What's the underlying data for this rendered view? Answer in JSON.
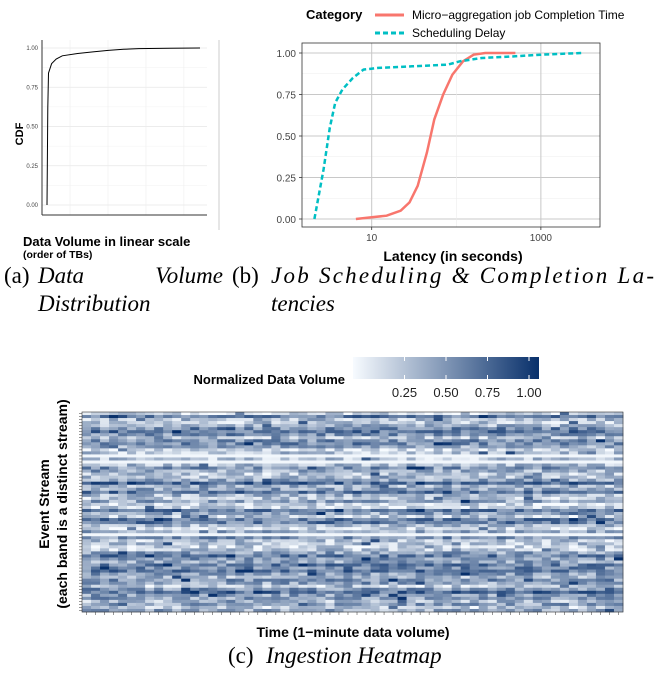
{
  "chart_data": [
    {
      "type": "line",
      "panel": "a",
      "ylabel": "CDF",
      "xlabel_line1": "Data Volume in linear scale",
      "xlabel_line2": "(order of TBs)",
      "yticks": [
        "0.00",
        "0.25",
        "0.50",
        "0.75",
        "1.00"
      ],
      "ylim": [
        0,
        1
      ],
      "grid": true,
      "series": [
        {
          "points": [
            [
              0,
              0
            ],
            [
              0.005,
              0.62
            ],
            [
              0.01,
              0.84
            ],
            [
              0.03,
              0.9
            ],
            [
              0.06,
              0.93
            ],
            [
              0.1,
              0.95
            ],
            [
              0.2,
              0.965
            ],
            [
              0.3,
              0.975
            ],
            [
              0.4,
              0.985
            ],
            [
              0.5,
              0.992
            ],
            [
              0.6,
              0.996
            ],
            [
              0.8,
              0.999
            ],
            [
              1.0,
              1.0
            ]
          ]
        }
      ],
      "caption_prefix": "(a)",
      "caption_line1_word1": "Data",
      "caption_line1_word2": "Volume",
      "caption_line2": "Distribution"
    },
    {
      "type": "line",
      "panel": "b",
      "xscale": "log",
      "xlabel": "Latency (in seconds)",
      "xticks": [
        "10",
        "1000"
      ],
      "xtick_values": [
        10,
        1000
      ],
      "yticks": [
        "0.00",
        "0.25",
        "0.50",
        "0.75",
        "1.00"
      ],
      "ylim": [
        0,
        1
      ],
      "xlim": [
        1.5,
        5000
      ],
      "grid": true,
      "legend_title": "Category",
      "legend_position": "top",
      "series": [
        {
          "name": "Micro−aggregation job Completion Time",
          "color": "#f8766d",
          "style": "solid",
          "points": [
            [
              6.5,
              0.0
            ],
            [
              10,
              0.01
            ],
            [
              15,
              0.02
            ],
            [
              22,
              0.05
            ],
            [
              28,
              0.1
            ],
            [
              35,
              0.2
            ],
            [
              45,
              0.4
            ],
            [
              55,
              0.6
            ],
            [
              70,
              0.75
            ],
            [
              90,
              0.87
            ],
            [
              120,
              0.95
            ],
            [
              160,
              0.99
            ],
            [
              220,
              1.0
            ],
            [
              500,
              1.0
            ]
          ]
        },
        {
          "name": "Scheduling Delay",
          "color": "#00bfc4",
          "style": "dashed",
          "points": [
            [
              2.1,
              0.0
            ],
            [
              2.7,
              0.3
            ],
            [
              3.2,
              0.55
            ],
            [
              3.7,
              0.7
            ],
            [
              4.5,
              0.78
            ],
            [
              6,
              0.85
            ],
            [
              8,
              0.9
            ],
            [
              12,
              0.91
            ],
            [
              30,
              0.92
            ],
            [
              80,
              0.93
            ],
            [
              110,
              0.95
            ],
            [
              200,
              0.97
            ],
            [
              500,
              0.98
            ],
            [
              1000,
              0.99
            ],
            [
              3000,
              1.0
            ]
          ]
        }
      ],
      "caption_prefix": "(b)",
      "caption_line1": "Job Scheduling & Completion La-",
      "caption_line2": "tencies"
    },
    {
      "type": "heatmap",
      "panel": "c",
      "legend_title": "Normalized Data Volume",
      "legend_ticks": [
        "0.25",
        "0.50",
        "0.75",
        "1.00"
      ],
      "legend_tick_values": [
        0.25,
        0.5,
        0.75,
        1.0
      ],
      "color_low": "#f7fbff",
      "color_high": "#08306b",
      "xlabel": "Time (1−minute data volume)",
      "ylabel_line1": "Event Stream",
      "ylabel_line2": "(each band is a distinct stream)",
      "rows": 66,
      "cols": 60,
      "caption_prefix": "(c)",
      "caption_text": "Ingestion Heatmap"
    }
  ]
}
